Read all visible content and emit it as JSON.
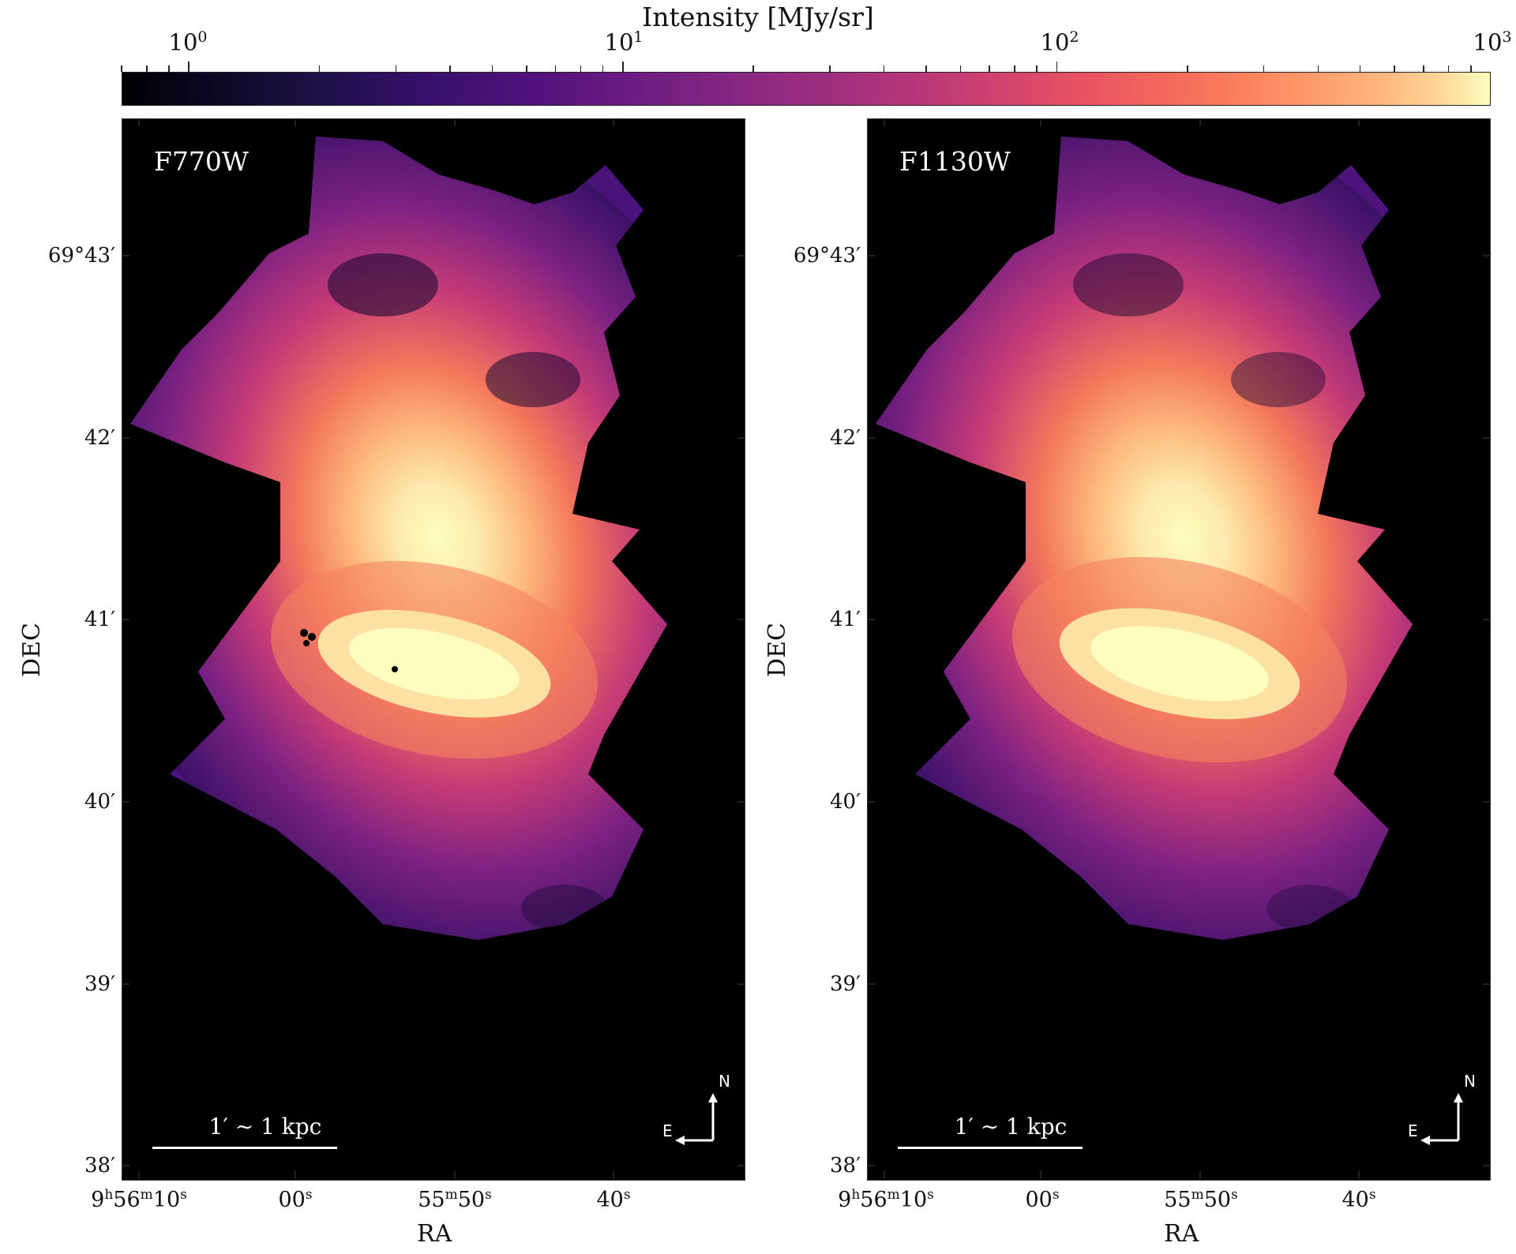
{
  "colorbar": {
    "label": "Intensity [MJy/sr]",
    "scale": "log",
    "range": [
      0.7,
      1000
    ],
    "ticks": [
      {
        "base": "10",
        "exp": "0"
      },
      {
        "base": "10",
        "exp": "1"
      },
      {
        "base": "10",
        "exp": "2"
      },
      {
        "base": "10",
        "exp": "3"
      }
    ],
    "colormap": "magma"
  },
  "panels": [
    {
      "filter": "F770W",
      "scale_bar_label": "1′ ∼ 1 kpc",
      "compass": {
        "north": "N",
        "east": "E"
      },
      "x_axis_title": "RA",
      "y_axis_title": "DEC",
      "y_ticks": [
        "69°43′",
        "42′",
        "41′",
        "40′",
        "39′",
        "38′"
      ],
      "x_ticks": [
        {
          "main": "9",
          "sup1": "h",
          "mid": "56",
          "sup2": "m",
          "end": "10",
          "sup3": "s"
        },
        {
          "main": "00",
          "sup1": "s"
        },
        {
          "main": "55",
          "sup1": "m",
          "mid": "50",
          "sup2": "s"
        },
        {
          "main": "40",
          "sup1": "s"
        }
      ]
    },
    {
      "filter": "F1130W",
      "scale_bar_label": "1′ ∼ 1 kpc",
      "compass": {
        "north": "N",
        "east": "E"
      },
      "x_axis_title": "RA",
      "y_axis_title": "DEC",
      "y_ticks": [
        "69°43′",
        "42′",
        "41′",
        "40′",
        "39′",
        "38′"
      ],
      "x_ticks": [
        {
          "main": "9",
          "sup1": "h",
          "mid": "56",
          "sup2": "m",
          "end": "10",
          "sup3": "s"
        },
        {
          "main": "00",
          "sup1": "s"
        },
        {
          "main": "55",
          "sup1": "m",
          "mid": "50",
          "sup2": "s"
        },
        {
          "main": "40",
          "sup1": "s"
        }
      ]
    }
  ]
}
